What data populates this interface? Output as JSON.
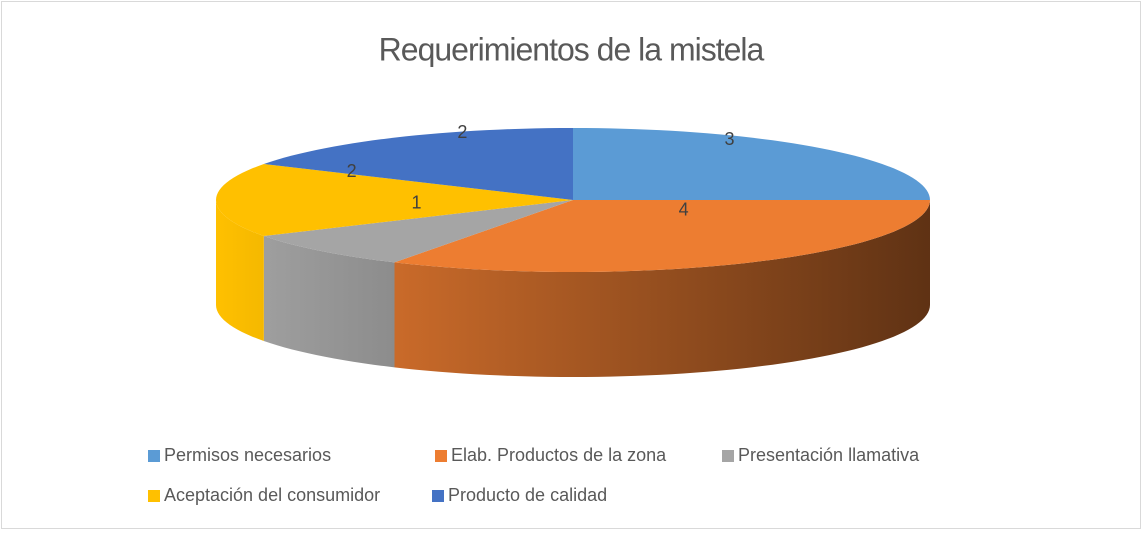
{
  "chart_data": {
    "type": "pie3d",
    "title": "Requerimientos de la mistela",
    "categories": [
      "Permisos necesarios",
      "Elab. Productos de la zona",
      "Presentación llamativa",
      "Aceptación del consumidor",
      "Producto de calidad"
    ],
    "values": [
      3,
      4,
      1,
      2,
      2
    ],
    "colors": [
      "#5b9bd5",
      "#ed7d31",
      "#a5a5a5",
      "#ffc000",
      "#4472c4"
    ],
    "legend": "bottom"
  }
}
